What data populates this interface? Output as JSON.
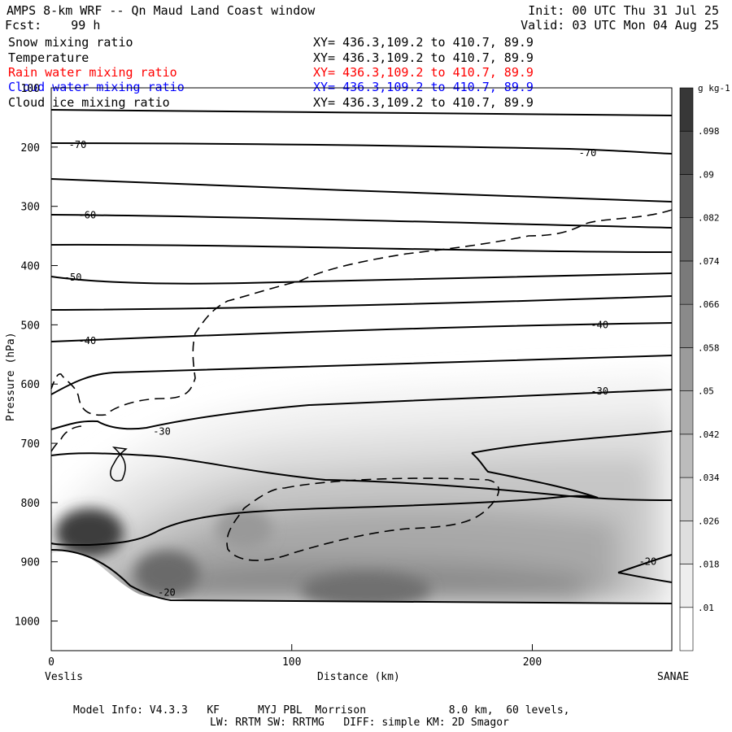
{
  "header": {
    "title": "AMPS 8-km WRF -- Qn Maud Land Coast window",
    "fcst": "Fcst:    99 h",
    "init": "Init: 00 UTC Thu 31 Jul 25",
    "valid": "Valid: 03 UTC Mon 04 Aug 25"
  },
  "fields": [
    {
      "name": "Snow mixing ratio",
      "xy": "XY= 436.3,109.2 to 410.7, 89.9",
      "color": "#000000"
    },
    {
      "name": "Temperature",
      "xy": "XY= 436.3,109.2 to 410.7, 89.9",
      "color": "#000000"
    },
    {
      "name": "Rain water mixing ratio",
      "xy": "XY= 436.3,109.2 to 410.7, 89.9",
      "color": "#ff0000"
    },
    {
      "name": "Cloud water mixing ratio",
      "xy": "XY= 436.3,109.2 to 410.7, 89.9",
      "color": "#0000ff"
    },
    {
      "name": "Cloud ice mixing ratio",
      "xy": "XY= 436.3,109.2 to 410.7, 89.9",
      "color": "#000000"
    }
  ],
  "chart_data": {
    "type": "heatmap",
    "ylabel": "Pressure (hPa)",
    "xlabel": "Distance (km)",
    "x_ticks": [
      0,
      100,
      200
    ],
    "y_ticks": [
      100,
      200,
      300,
      400,
      500,
      600,
      700,
      800,
      900,
      1000
    ],
    "xlim": [
      0,
      258
    ],
    "ylim": [
      1050,
      100
    ],
    "left_endpoint": "Veslis",
    "right_endpoint": "SANAE",
    "colorbar": {
      "unit": "g kg-1",
      "labels": [
        ".01",
        ".018",
        ".026",
        ".034",
        ".042",
        ".05",
        ".058",
        ".066",
        ".074",
        ".082",
        ".09",
        ".098"
      ]
    },
    "temperature_contour_labels": [
      {
        "text": "-70",
        "x": 11,
        "p": 196
      },
      {
        "text": "-70",
        "x": 223,
        "p": 210
      },
      {
        "text": "-60",
        "x": 15,
        "p": 315
      },
      {
        "text": "-50",
        "x": 9,
        "p": 420
      },
      {
        "text": "-40",
        "x": 15,
        "p": 527
      },
      {
        "text": "-40",
        "x": 228,
        "p": 500
      },
      {
        "text": "-30",
        "x": 46,
        "p": 680
      },
      {
        "text": "-30",
        "x": 228,
        "p": 612
      },
      {
        "text": "-20",
        "x": 48,
        "p": 952
      },
      {
        "text": "-20",
        "x": 248,
        "p": 900
      }
    ]
  },
  "footer": {
    "line1": "Model Info: V4.3.3   KF      MYJ PBL  Morrison             8.0 km,  60 levels,",
    "line2": "LW: RRTM SW: RRTMG   DIFF: simple KM: 2D Smagor"
  }
}
